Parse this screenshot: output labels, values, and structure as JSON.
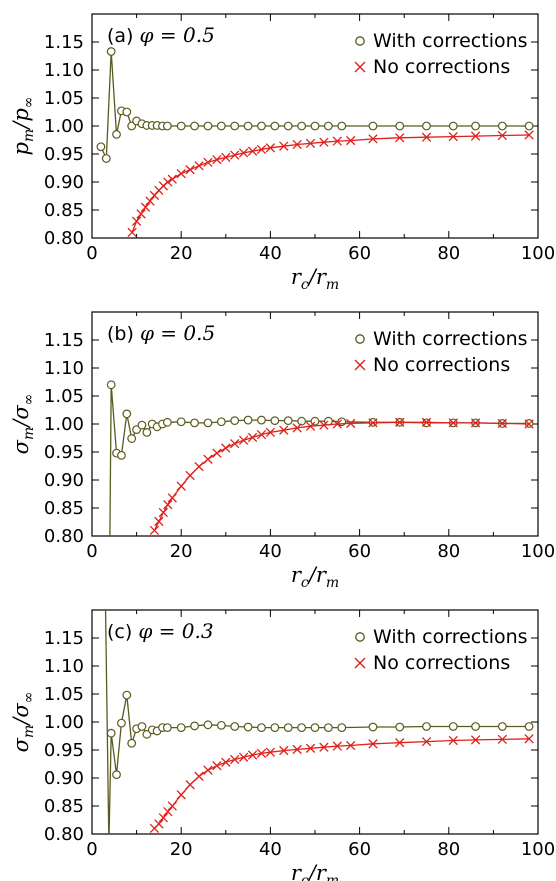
{
  "chart_data": [
    {
      "type": "line",
      "panel_tag": "(a)",
      "panel_param": "φ = 0.5",
      "xlabel": "r_c/r_m",
      "ylabel": "p_m/p_∞",
      "xlim": [
        0,
        100
      ],
      "ylim": [
        0.8,
        1.2
      ],
      "xticks": [
        0,
        20,
        40,
        60,
        80,
        100
      ],
      "yticks": [
        0.8,
        0.85,
        0.9,
        0.95,
        1.0,
        1.05,
        1.1,
        1.15
      ],
      "grid": false,
      "legend_position": "top-right",
      "series": [
        {
          "name": "With corrections",
          "color": "#5a5a1e",
          "marker": "circle",
          "x": [
            2,
            3.2,
            4.3,
            5.5,
            6.6,
            7.8,
            8.9,
            10,
            11.2,
            12.3,
            13.5,
            14.6,
            15.8,
            16.9,
            20,
            23,
            26,
            29,
            32,
            35,
            38,
            41,
            44,
            47,
            50,
            53,
            56,
            63,
            69,
            75,
            81,
            86,
            92,
            98
          ],
          "y": [
            0.963,
            0.942,
            1.133,
            0.985,
            1.027,
            1.025,
            1.0,
            1.009,
            1.004,
            1.001,
            1.001,
            1.001,
            1.0,
            1.0,
            1.0,
            1.0,
            1.0,
            1.0,
            1.0,
            1.0,
            1.0,
            1.0,
            1.0,
            1.0,
            1.0,
            1.0,
            1.0,
            1.0,
            1.0,
            1.0,
            1.0,
            1.0,
            1.0,
            1.0
          ]
        },
        {
          "name": "No corrections",
          "color": "#e0201a",
          "marker": "cross",
          "x": [
            9,
            10,
            11,
            12,
            13,
            14,
            15,
            16,
            17,
            18,
            20,
            22,
            24,
            26,
            28,
            30,
            32,
            34,
            36,
            38,
            40,
            43,
            46,
            49,
            52,
            55,
            58,
            63,
            69,
            75,
            81,
            86,
            92,
            98
          ],
          "y": [
            0.81,
            0.83,
            0.843,
            0.855,
            0.866,
            0.876,
            0.885,
            0.893,
            0.9,
            0.905,
            0.915,
            0.922,
            0.929,
            0.935,
            0.94,
            0.944,
            0.948,
            0.952,
            0.955,
            0.958,
            0.961,
            0.964,
            0.967,
            0.969,
            0.971,
            0.973,
            0.974,
            0.977,
            0.979,
            0.98,
            0.981,
            0.982,
            0.983,
            0.984
          ]
        }
      ]
    },
    {
      "type": "line",
      "panel_tag": "(b)",
      "panel_param": "φ = 0.5",
      "xlabel": "r_c/r_m",
      "ylabel": "σ_m/σ_∞",
      "xlim": [
        0,
        100
      ],
      "ylim": [
        0.8,
        1.2
      ],
      "xticks": [
        0,
        20,
        40,
        60,
        80,
        100
      ],
      "yticks": [
        0.8,
        0.85,
        0.9,
        0.95,
        1.0,
        1.05,
        1.1,
        1.15
      ],
      "grid": false,
      "legend_position": "top-right",
      "series": [
        {
          "name": "With corrections",
          "color": "#5a5a1e",
          "marker": "circle",
          "x": [
            4.3,
            5.5,
            6.6,
            7.8,
            8.9,
            10,
            11.2,
            12.3,
            13.5,
            14.6,
            15.8,
            16.9,
            20,
            23,
            26,
            29,
            32,
            35,
            38,
            41,
            44,
            47,
            50,
            53,
            56,
            63,
            69,
            75,
            81,
            86,
            92,
            98
          ],
          "y": [
            1.07,
            0.948,
            0.944,
            1.018,
            0.974,
            0.99,
            0.998,
            0.985,
            1.0,
            0.995,
            1.0,
            1.003,
            1.004,
            1.002,
            1.002,
            1.004,
            1.006,
            1.007,
            1.007,
            1.006,
            1.006,
            1.005,
            1.005,
            1.005,
            1.004,
            1.003,
            1.003,
            1.002,
            1.002,
            1.002,
            1.001,
            1.001
          ]
        },
        {
          "name": "No corrections",
          "color": "#e0201a",
          "marker": "cross",
          "x": [
            14,
            15,
            16,
            17,
            18,
            20,
            22,
            24,
            26,
            28,
            30,
            32,
            34,
            36,
            38,
            40,
            43,
            46,
            49,
            52,
            55,
            58,
            63,
            69,
            75,
            81,
            86,
            92,
            98
          ],
          "y": [
            0.81,
            0.826,
            0.842,
            0.856,
            0.868,
            0.889,
            0.908,
            0.924,
            0.937,
            0.948,
            0.957,
            0.965,
            0.971,
            0.976,
            0.981,
            0.985,
            0.989,
            0.993,
            0.996,
            0.998,
            1.0,
            1.001,
            1.002,
            1.003,
            1.003,
            1.002,
            1.002,
            1.001,
            1.0
          ]
        }
      ]
    },
    {
      "type": "line",
      "panel_tag": "(c)",
      "panel_param": "φ = 0.3",
      "xlabel": "r_c/r_m",
      "ylabel": "σ_m/σ_∞",
      "xlim": [
        0,
        100
      ],
      "ylim": [
        0.8,
        1.2
      ],
      "xticks": [
        0,
        20,
        40,
        60,
        80,
        100
      ],
      "yticks": [
        0.8,
        0.85,
        0.9,
        0.95,
        1.0,
        1.05,
        1.1,
        1.15
      ],
      "grid": false,
      "legend_position": "top-right",
      "series": [
        {
          "name": "With corrections",
          "color": "#5a5a1e",
          "marker": "circle",
          "x": [
            4.3,
            5.5,
            6.6,
            7.8,
            8.9,
            10,
            11.2,
            12.3,
            13.5,
            14.6,
            15.8,
            16.9,
            20,
            23,
            26,
            29,
            32,
            35,
            38,
            41,
            44,
            47,
            50,
            53,
            56,
            63,
            69,
            75,
            81,
            86,
            92,
            98
          ],
          "y": [
            0.98,
            0.906,
            0.998,
            1.048,
            0.962,
            0.988,
            0.992,
            0.978,
            0.986,
            0.984,
            0.99,
            0.99,
            0.99,
            0.993,
            0.995,
            0.994,
            0.992,
            0.991,
            0.99,
            0.99,
            0.99,
            0.99,
            0.99,
            0.99,
            0.99,
            0.991,
            0.991,
            0.992,
            0.992,
            0.992,
            0.992,
            0.992
          ]
        },
        {
          "name": "No corrections",
          "color": "#e0201a",
          "marker": "cross",
          "x": [
            14,
            15,
            16,
            17,
            18,
            20,
            22,
            24,
            26,
            28,
            30,
            32,
            34,
            36,
            38,
            40,
            43,
            46,
            49,
            52,
            55,
            58,
            63,
            69,
            75,
            81,
            86,
            92,
            98
          ],
          "y": [
            0.81,
            0.818,
            0.829,
            0.84,
            0.85,
            0.87,
            0.888,
            0.903,
            0.914,
            0.922,
            0.928,
            0.933,
            0.937,
            0.941,
            0.944,
            0.946,
            0.949,
            0.951,
            0.953,
            0.955,
            0.957,
            0.958,
            0.961,
            0.963,
            0.965,
            0.967,
            0.968,
            0.969,
            0.97
          ]
        }
      ]
    }
  ]
}
